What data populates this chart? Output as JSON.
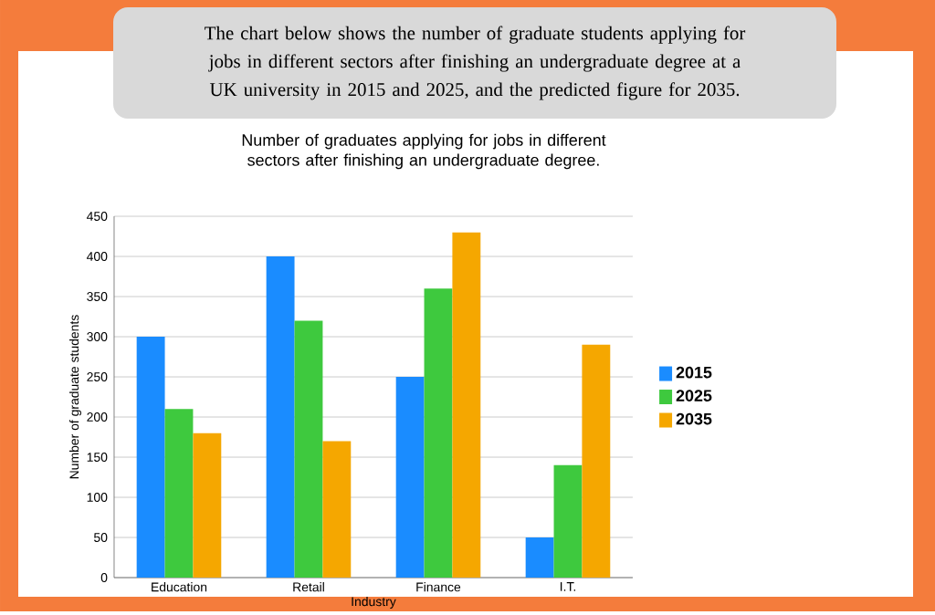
{
  "chart_data": {
    "type": "bar",
    "title": "The chart below shows the number of graduate students applying for jobs in different sectors after finishing an undergraduate degree at a UK university in 2015 and 2025, and the predicted figure for 2035.",
    "subtitle": "Number of graduates applying for jobs in different sectors after finishing an undergraduate degree.",
    "xlabel": "Industry",
    "ylabel": "Number of graduate students",
    "categories": [
      "Education",
      "Retail",
      "Finance",
      "I.T."
    ],
    "series": [
      {
        "name": "2015",
        "color": "#1a8cff",
        "values": [
          300,
          400,
          250,
          50
        ]
      },
      {
        "name": "2025",
        "color": "#3ec93e",
        "values": [
          210,
          320,
          360,
          140
        ]
      },
      {
        "name": "2035",
        "color": "#f5a700",
        "values": [
          180,
          170,
          430,
          290
        ]
      }
    ],
    "ylim": [
      0,
      450
    ],
    "yticks": [
      0,
      50,
      100,
      150,
      200,
      250,
      300,
      350,
      400,
      450
    ],
    "grid": "y",
    "legend": "right"
  }
}
